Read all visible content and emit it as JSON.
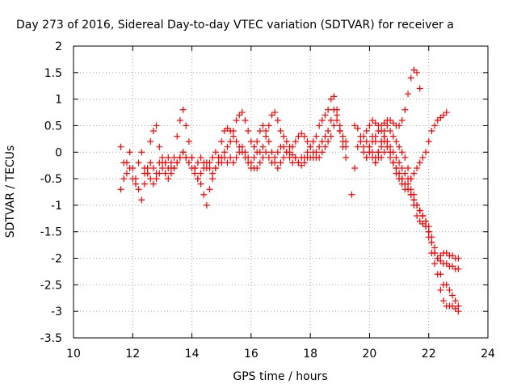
{
  "chart_data": {
    "type": "scatter",
    "title": "Day 273 of 2016, Sidereal Day-to-day VTEC variation (SDTVAR) for receiver a",
    "xlabel": "GPS time / hours",
    "ylabel": "SDTVAR / TECUs",
    "xlim": [
      10,
      24
    ],
    "ylim": [
      -3.5,
      2
    ],
    "x_ticks": [
      10,
      12,
      14,
      16,
      18,
      20,
      22,
      24
    ],
    "y_ticks": [
      -3.5,
      -3,
      -2.5,
      -2,
      -1.5,
      -1,
      -0.5,
      0,
      0.5,
      1,
      1.5,
      2
    ],
    "x_tick_labels": [
      "10",
      "12",
      "14",
      "16",
      "18",
      "20",
      "22",
      "24"
    ],
    "y_tick_labels": [
      "-3.5",
      "-3",
      "-2.5",
      "-2",
      "-1.5",
      "-1",
      "-0.5",
      "0",
      "0.5",
      "1",
      "1.5",
      "2"
    ],
    "grid": true,
    "marker": "+",
    "color": "#ff0000",
    "series": [
      {
        "x": [
          11.6,
          11.7,
          11.8,
          11.9,
          12.0,
          12.1,
          12.2,
          12.3,
          12.4,
          12.5,
          12.6,
          12.7,
          12.8,
          12.9,
          13.0,
          13.1,
          13.2,
          13.3,
          13.4,
          13.5,
          13.6,
          13.7,
          13.8,
          13.9,
          14.0,
          14.1,
          14.2,
          14.3,
          14.4,
          14.5,
          14.6,
          14.7,
          14.8,
          14.9,
          15.0,
          15.1,
          15.2,
          15.3,
          15.4,
          15.5,
          15.6,
          15.7,
          15.8,
          15.9,
          16.0,
          16.1,
          16.2,
          16.3,
          16.4,
          16.5,
          16.6,
          16.7,
          16.8,
          16.9,
          17.0,
          17.1,
          17.2,
          17.3,
          17.4,
          17.5,
          17.6,
          17.7,
          17.8,
          17.9,
          18.0,
          18.1,
          18.2,
          18.3,
          18.4,
          18.5,
          18.6,
          18.7,
          18.8,
          18.9,
          19.0,
          19.1,
          19.2
        ],
        "y": [
          0.1,
          -0.2,
          -0.4,
          -0.3,
          -0.5,
          -0.6,
          -0.2,
          0.0,
          -0.3,
          -0.4,
          -0.2,
          -0.3,
          -0.5,
          -0.4,
          -0.3,
          -0.2,
          -0.1,
          -0.2,
          -0.3,
          -0.2,
          -0.1,
          0.0,
          -0.1,
          -0.2,
          -0.1,
          -0.3,
          -0.2,
          -0.1,
          -0.2,
          -0.3,
          -0.2,
          -0.1,
          0.0,
          -0.1,
          -0.2,
          -0.1,
          -0.2,
          -0.1,
          -0.2,
          -0.1,
          0.0,
          0.1,
          0.0,
          -0.1,
          -0.2,
          -0.3,
          -0.3,
          -0.2,
          -0.1,
          0.0,
          -0.1,
          -0.2,
          -0.1,
          0.0,
          0.1,
          0.1,
          0.0,
          -0.1,
          -0.2,
          -0.1,
          -0.2,
          -0.1,
          -0.1,
          0.0,
          0.1,
          0.2,
          0.3,
          0.5,
          0.6,
          0.7,
          0.8,
          1.0,
          1.05,
          0.8,
          0.5,
          0.3,
          0.2
        ]
      },
      {
        "x": [
          11.6,
          11.7,
          11.8,
          11.9,
          12.0,
          12.1,
          12.2,
          12.3,
          12.4,
          12.5,
          12.6,
          12.7,
          12.8,
          12.9,
          13.0,
          13.1,
          13.2,
          13.3,
          13.4,
          13.5,
          13.6,
          13.7,
          13.8,
          13.9,
          14.0,
          14.1,
          14.2,
          14.3,
          14.4,
          14.5,
          14.6,
          14.7,
          14.8,
          14.9,
          15.0,
          15.1,
          15.2,
          15.3,
          15.4,
          15.5,
          15.6,
          15.7,
          15.8,
          15.9,
          16.0,
          16.1,
          16.2,
          16.3,
          16.4,
          16.5,
          16.6,
          16.7,
          16.8,
          16.9,
          17.0,
          17.1,
          17.2,
          17.3,
          17.4,
          17.5,
          17.6,
          17.7,
          17.8,
          17.9,
          18.0,
          18.1,
          18.2,
          18.3,
          18.4,
          18.5,
          18.6,
          18.7,
          18.8,
          18.9,
          19.0,
          19.1,
          19.2
        ],
        "y": [
          -0.7,
          -0.5,
          -0.2,
          0.0,
          -0.3,
          -0.5,
          -0.7,
          -0.9,
          -0.6,
          -0.4,
          0.2,
          0.4,
          0.5,
          0.1,
          -0.2,
          -0.4,
          -0.5,
          -0.3,
          -0.1,
          0.3,
          0.6,
          0.8,
          0.5,
          0.2,
          -0.1,
          -0.3,
          -0.5,
          -0.6,
          -0.8,
          -1.0,
          -0.7,
          -0.5,
          -0.3,
          -0.1,
          0.2,
          0.4,
          0.45,
          0.4,
          0.3,
          0.2,
          0.1,
          0.0,
          -0.1,
          -0.2,
          -0.3,
          -0.1,
          0.2,
          0.4,
          0.5,
          0.4,
          0.2,
          0.0,
          -0.2,
          -0.3,
          -0.2,
          -0.1,
          0.0,
          0.0,
          -0.05,
          -0.1,
          -0.2,
          -0.25,
          -0.2,
          -0.1,
          -0.1,
          -0.1,
          0.0,
          0.1,
          0.2,
          0.3,
          0.4,
          0.6,
          0.8,
          0.7,
          0.4,
          0.1,
          -0.1
        ]
      },
      {
        "x": [
          12.4,
          12.5,
          12.6,
          12.7,
          12.8,
          12.9,
          13.0,
          13.1,
          13.2,
          13.3,
          13.4,
          13.5,
          13.6,
          13.7,
          13.8,
          13.9,
          14.0,
          14.1,
          14.2,
          14.3,
          14.4,
          14.5,
          14.6,
          14.7,
          14.8,
          14.9,
          15.0,
          15.1,
          15.2,
          15.3,
          15.4,
          15.5,
          15.6,
          15.7,
          15.8,
          15.9,
          16.0,
          16.1,
          16.2,
          16.3,
          16.4,
          16.5,
          16.6,
          16.7,
          16.8,
          16.9,
          17.0,
          17.1,
          17.2,
          17.3,
          17.4,
          17.5,
          17.6,
          17.7,
          17.8,
          17.9,
          18.0,
          18.1,
          18.2,
          18.3,
          18.4,
          18.5,
          18.6,
          18.7,
          18.8,
          18.9,
          19.0,
          19.1,
          19.2
        ],
        "y": [
          -0.4,
          -0.3,
          -0.5,
          -0.6,
          -0.4,
          -0.2,
          -0.1,
          -0.2,
          -0.3,
          -0.4,
          -0.3,
          -0.2,
          -0.1,
          0.0,
          -0.1,
          -0.2,
          -0.3,
          -0.4,
          -0.5,
          -0.4,
          -0.3,
          -0.2,
          -0.3,
          -0.4,
          -0.3,
          -0.2,
          -0.1,
          0.0,
          0.1,
          0.2,
          0.4,
          0.6,
          0.7,
          0.75,
          0.6,
          0.4,
          0.2,
          0.1,
          0.0,
          0.0,
          0.1,
          0.3,
          0.5,
          0.7,
          0.75,
          0.6,
          0.4,
          0.3,
          0.2,
          0.1,
          0.1,
          0.2,
          0.3,
          0.35,
          0.3,
          0.2,
          0.1,
          0.0,
          -0.1,
          -0.1,
          0.0,
          0.1,
          0.2,
          0.3,
          0.5,
          0.6,
          0.4,
          0.2,
          0.1
        ]
      },
      {
        "x": [
          19.5,
          19.6,
          19.7,
          19.8,
          19.9,
          20.0,
          20.1,
          20.2,
          20.3,
          20.4,
          20.5,
          20.6,
          20.7,
          20.8,
          20.9,
          21.0,
          21.1,
          21.2,
          21.3,
          21.4,
          21.5,
          21.6,
          21.7
        ],
        "y": [
          0.5,
          0.45,
          0.3,
          0.1,
          -0.1,
          0.0,
          0.2,
          0.3,
          0.4,
          0.5,
          0.55,
          0.6,
          0.6,
          0.55,
          0.5,
          0.5,
          0.6,
          0.8,
          1.1,
          1.4,
          1.55,
          1.5,
          1.2
        ]
      },
      {
        "x": [
          19.4,
          19.5,
          19.6,
          19.7,
          19.8,
          19.9,
          20.0,
          20.1,
          20.2,
          20.3,
          20.4,
          20.5,
          20.6,
          20.7,
          20.8,
          20.9,
          21.0,
          21.1,
          21.2,
          21.3,
          21.4,
          21.5,
          21.6,
          21.7,
          21.8,
          21.9,
          22.0,
          22.1,
          22.2,
          22.3,
          22.4,
          22.5,
          22.6
        ],
        "y": [
          -0.8,
          -0.3,
          0.1,
          0.2,
          0.0,
          -0.1,
          0.1,
          0.3,
          0.2,
          0.0,
          -0.1,
          0.0,
          0.1,
          0.0,
          -0.2,
          -0.4,
          -0.5,
          -0.6,
          -0.7,
          -0.6,
          -0.5,
          -0.4,
          -0.3,
          -0.2,
          -0.1,
          0.0,
          0.2,
          0.4,
          0.5,
          0.6,
          0.65,
          0.7,
          0.75
        ]
      },
      {
        "x": [
          19.8,
          19.9,
          20.0,
          20.1,
          20.2,
          20.3,
          20.4,
          20.5,
          20.6,
          20.7,
          20.8,
          20.9,
          21.0,
          21.1,
          21.2,
          21.3,
          21.4,
          21.5,
          21.6,
          21.7,
          21.8,
          21.9,
          22.0,
          22.1,
          22.2,
          22.3,
          22.4,
          22.5,
          22.6,
          22.7,
          22.8,
          22.9,
          23.0
        ],
        "y": [
          0.3,
          0.4,
          0.5,
          0.6,
          0.55,
          0.5,
          0.4,
          0.3,
          0.2,
          0.1,
          0.0,
          -0.1,
          -0.2,
          -0.3,
          -0.4,
          -0.5,
          -0.7,
          -0.9,
          -1.0,
          -1.1,
          -1.2,
          -1.3,
          -1.4,
          -1.6,
          -1.8,
          -2.0,
          -2.3,
          -2.5,
          -2.5,
          -2.6,
          -2.7,
          -2.8,
          -2.9
        ]
      },
      {
        "x": [
          19.9,
          20.0,
          20.1,
          20.2,
          20.3,
          20.4,
          20.5,
          20.6,
          20.7,
          20.8,
          20.9,
          21.0,
          21.1,
          21.2,
          21.3,
          21.4,
          21.5,
          21.6,
          21.7,
          21.8,
          21.9,
          22.0,
          22.1,
          22.2,
          22.3,
          22.4,
          22.5,
          22.6,
          22.7,
          22.8,
          22.9,
          23.0
        ],
        "y": [
          0.2,
          0.1,
          0.0,
          -0.1,
          0.0,
          0.2,
          0.4,
          0.5,
          0.4,
          0.3,
          0.2,
          0.1,
          0.0,
          -0.1,
          -0.3,
          -0.5,
          -0.8,
          -1.0,
          -1.1,
          -1.2,
          -1.4,
          -1.6,
          -1.9,
          -2.1,
          -2.3,
          -2.6,
          -2.8,
          -2.9,
          -2.9,
          -2.9,
          -2.95,
          -3.0
        ]
      },
      {
        "x": [
          20.0,
          20.1,
          20.2,
          20.3,
          20.4,
          20.5,
          20.6,
          20.7,
          20.8,
          20.9,
          21.0,
          21.1,
          21.2,
          21.3,
          21.4,
          21.5,
          21.6,
          21.7,
          21.8,
          21.9,
          22.0,
          22.1,
          22.2,
          22.3,
          22.4,
          22.5,
          22.6,
          22.7,
          22.8,
          22.9,
          23.0
        ],
        "y": [
          0.0,
          -0.1,
          -0.2,
          0.0,
          0.2,
          0.3,
          0.2,
          0.0,
          -0.2,
          -0.3,
          -0.4,
          -0.5,
          -0.6,
          -0.7,
          -0.8,
          -1.0,
          -1.2,
          -1.3,
          -1.35,
          -1.4,
          -1.5,
          -1.7,
          -1.9,
          -2.0,
          -2.05,
          -2.1,
          -2.1,
          -2.15,
          -2.15,
          -2.2,
          -2.2
        ]
      },
      {
        "x": [
          20.2,
          20.3,
          20.4,
          20.5,
          20.6,
          20.7,
          20.8,
          20.9,
          21.0,
          21.1,
          21.2,
          21.3,
          21.4,
          21.5,
          21.6,
          21.7,
          21.8,
          21.9,
          22.0,
          22.1,
          22.2,
          22.3,
          22.4,
          22.5,
          22.6,
          22.7,
          22.8,
          22.9,
          23.0
        ],
        "y": [
          -0.2,
          -0.1,
          0.1,
          0.2,
          0.1,
          -0.1,
          -0.2,
          -0.3,
          -0.4,
          -0.5,
          -0.6,
          -0.7,
          -0.8,
          -0.9,
          -1.0,
          -1.1,
          -1.2,
          -1.3,
          -1.5,
          -1.7,
          -1.9,
          -2.0,
          -1.95,
          -1.9,
          -1.9,
          -1.95,
          -1.95,
          -2.0,
          -2.0
        ]
      }
    ]
  }
}
